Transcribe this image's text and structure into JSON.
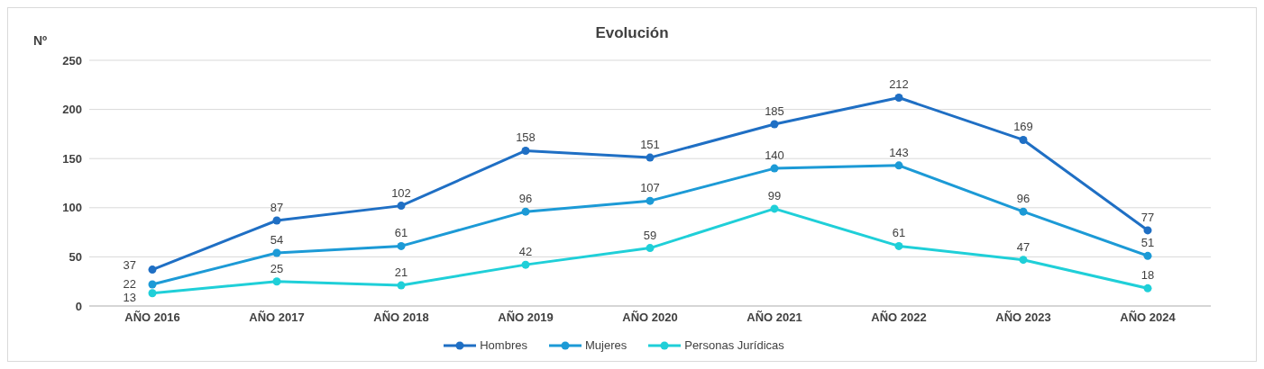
{
  "chart_data": {
    "type": "line",
    "title": "Evolución",
    "ylabel": "Nº",
    "categories": [
      "AÑO 2016",
      "AÑO 2017",
      "AÑO 2018",
      "AÑO 2019",
      "AÑO 2020",
      "AÑO 2021",
      "AÑO 2022",
      "AÑO 2023",
      "AÑO 2024"
    ],
    "series": [
      {
        "name": "Hombres",
        "color": "#1f6fc4",
        "values": [
          37,
          87,
          102,
          158,
          151,
          185,
          212,
          169,
          77
        ]
      },
      {
        "name": "Mujeres",
        "color": "#1c9ad6",
        "values": [
          22,
          54,
          61,
          96,
          107,
          140,
          143,
          96,
          51
        ]
      },
      {
        "name": "Personas Jurídicas",
        "color": "#1fcfd8",
        "values": [
          13,
          25,
          21,
          42,
          59,
          99,
          61,
          47,
          18
        ]
      }
    ],
    "ylim": [
      0,
      250
    ],
    "yticks": [
      0,
      50,
      100,
      150,
      200,
      250
    ],
    "grid": "y",
    "legend": "bottom",
    "marker": "circle",
    "line_style": "solid",
    "data_labels": true
  }
}
